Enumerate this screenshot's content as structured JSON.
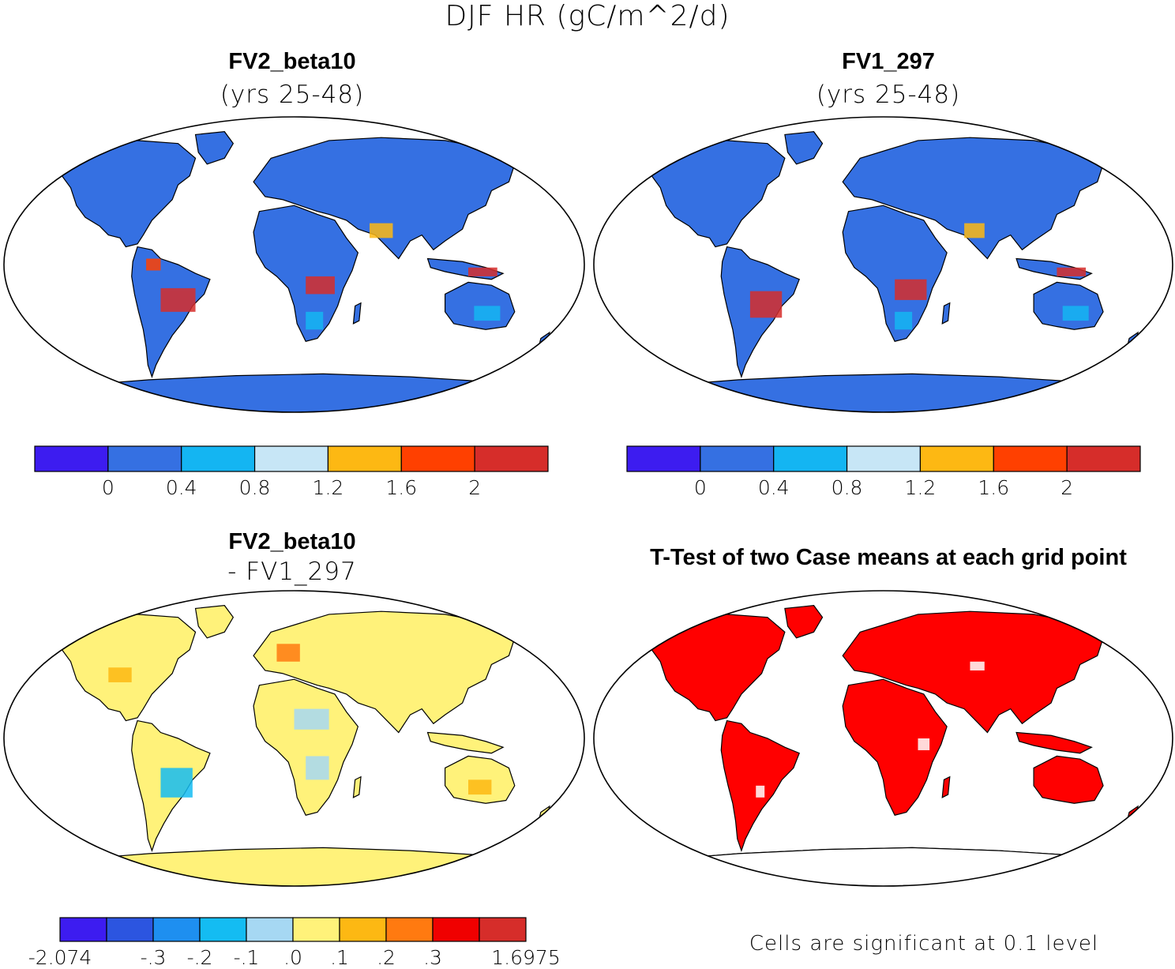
{
  "figure_title": "DJF HR (gC/m^2/d)",
  "panels": [
    {
      "title": "FV2_beta10",
      "subtitle": "(yrs 25-48)",
      "colorbar": {
        "colors": [
          "#3d1cf0",
          "#3570e2",
          "#14b5f2",
          "#c7e6f6",
          "#fdb813",
          "#ff4000",
          "#d62d2a"
        ],
        "tick_labels": [
          "0",
          "0.4",
          "0.8",
          "1.2",
          "1.6",
          "2"
        ]
      }
    },
    {
      "title": "FV1_297",
      "subtitle": "(yrs 25-48)",
      "colorbar": {
        "colors": [
          "#3d1cf0",
          "#3570e2",
          "#14b5f2",
          "#c7e6f6",
          "#fdb813",
          "#ff4000",
          "#d62d2a"
        ],
        "tick_labels": [
          "0",
          "0.4",
          "0.8",
          "1.2",
          "1.6",
          "2"
        ]
      }
    },
    {
      "title": "FV2_beta10",
      "subtitle": "- FV1_297",
      "colorbar": {
        "colors": [
          "#3d1cf0",
          "#2c55e0",
          "#1e8ff0",
          "#14bcf2",
          "#a6d8f3",
          "#fff27a",
          "#fdb813",
          "#ff7a10",
          "#f00000",
          "#d62d2a"
        ],
        "tick_labels": [
          "-2.074",
          "-.3",
          "-.2",
          "-.1",
          ".0",
          ".1",
          ".2",
          ".3",
          "1.6975"
        ]
      }
    },
    {
      "title": "T-Test of two Case means at each grid point",
      "note": "Cells are significant at 0.1 level",
      "significant_color": "#ff0000"
    }
  ],
  "land_colors": {
    "panel1_base": "#3570e2",
    "panel2_base": "#3570e2",
    "panel3_base": "#fff27a",
    "panel4_base": "#ff0000",
    "tropics_high": "#d62d2a",
    "ocean": "#ffffff"
  }
}
